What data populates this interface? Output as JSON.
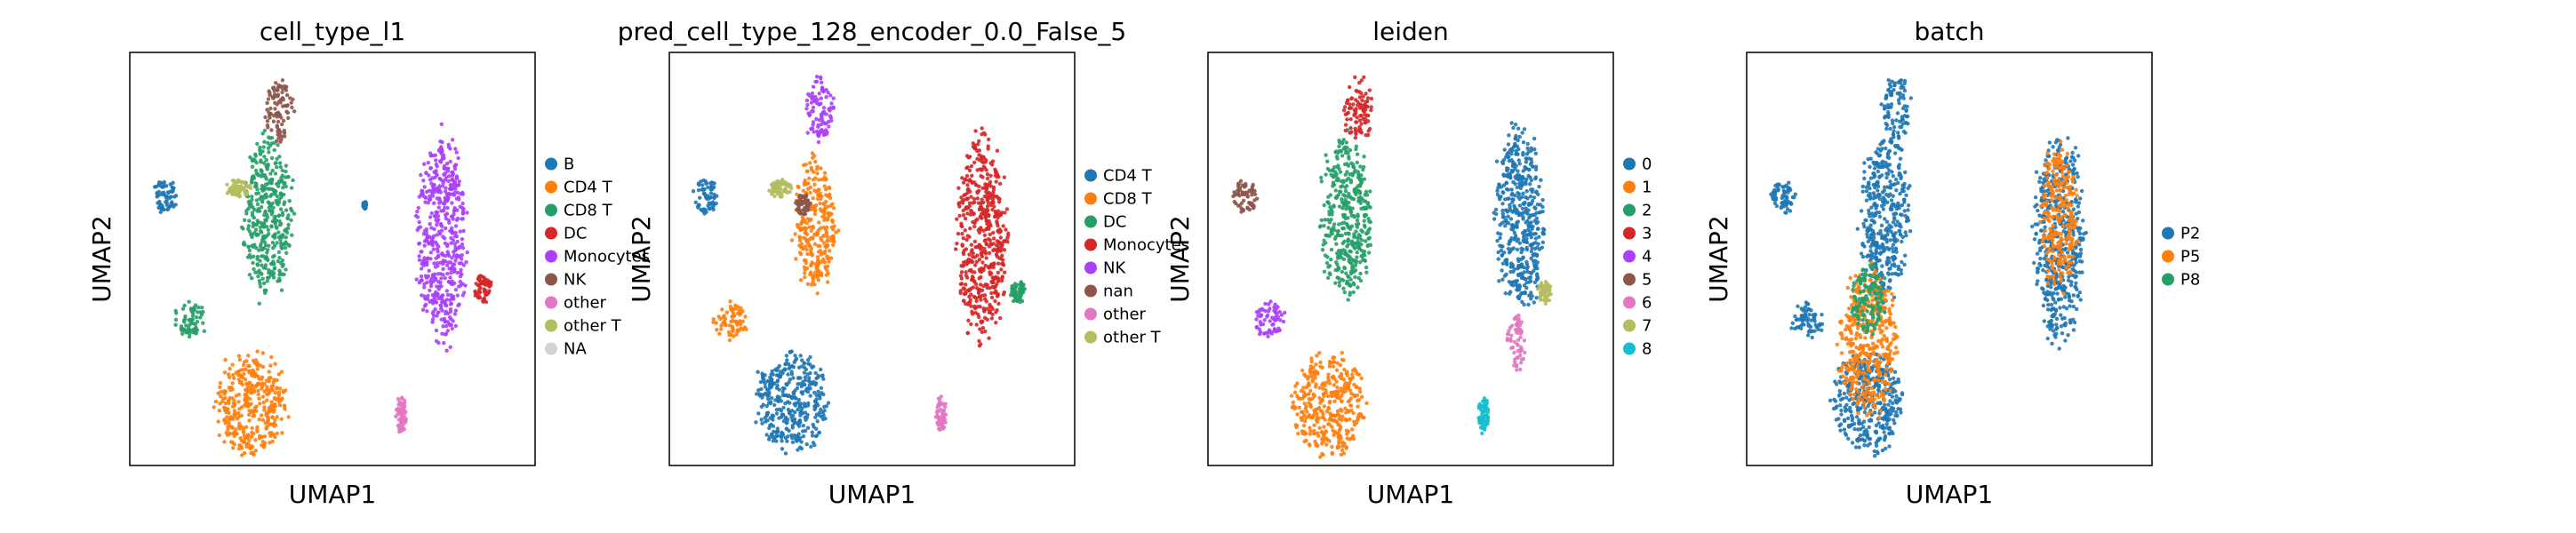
{
  "chart_data": [
    {
      "type": "scatter",
      "title": "cell_type_l1",
      "xlabel": "UMAP1",
      "ylabel": "UMAP2",
      "legend_position": "right",
      "legend": [
        {
          "label": "B",
          "color": "#1f77b4"
        },
        {
          "label": "CD4 T",
          "color": "#ff7f0e"
        },
        {
          "label": "CD8 T",
          "color": "#279e68"
        },
        {
          "label": "DC",
          "color": "#d62728"
        },
        {
          "label": "Monocytes",
          "color": "#aa40fc"
        },
        {
          "label": "NK",
          "color": "#8c564b"
        },
        {
          "label": "other",
          "color": "#e377c2"
        },
        {
          "label": "other T",
          "color": "#b5bd61"
        },
        {
          "label": "NA",
          "color": "#d3d3d3"
        }
      ],
      "clusters": [
        {
          "category": "B",
          "cx": 0.09,
          "cy": 0.65,
          "rx": 0.035,
          "ry": 0.045
        },
        {
          "category": "B",
          "cx": 0.58,
          "cy": 0.63,
          "rx": 0.005,
          "ry": 0.01
        },
        {
          "category": "CD4 T",
          "cx": 0.3,
          "cy": 0.15,
          "rx": 0.1,
          "ry": 0.14
        },
        {
          "category": "CD8 T",
          "cx": 0.34,
          "cy": 0.6,
          "rx": 0.07,
          "ry": 0.22
        },
        {
          "category": "CD8 T",
          "cx": 0.15,
          "cy": 0.35,
          "rx": 0.045,
          "ry": 0.05
        },
        {
          "category": "DC",
          "cx": 0.87,
          "cy": 0.43,
          "rx": 0.025,
          "ry": 0.04
        },
        {
          "category": "Monocytes",
          "cx": 0.77,
          "cy": 0.55,
          "rx": 0.07,
          "ry": 0.28
        },
        {
          "category": "NK",
          "cx": 0.37,
          "cy": 0.86,
          "rx": 0.04,
          "ry": 0.09
        },
        {
          "category": "other",
          "cx": 0.67,
          "cy": 0.12,
          "rx": 0.015,
          "ry": 0.05
        },
        {
          "category": "other T",
          "cx": 0.27,
          "cy": 0.67,
          "rx": 0.035,
          "ry": 0.025
        }
      ]
    },
    {
      "type": "scatter",
      "title": "pred_cell_type_128_encoder_0.0_False_5",
      "xlabel": "UMAP1",
      "ylabel": "UMAP2",
      "legend_position": "right",
      "legend": [
        {
          "label": "CD4 T",
          "color": "#1f77b4"
        },
        {
          "label": "CD8 T",
          "color": "#ff7f0e"
        },
        {
          "label": "DC",
          "color": "#279e68"
        },
        {
          "label": "Monocytes",
          "color": "#d62728"
        },
        {
          "label": "NK",
          "color": "#aa40fc"
        },
        {
          "label": "nan",
          "color": "#8c564b"
        },
        {
          "label": "other",
          "color": "#e377c2"
        },
        {
          "label": "other T",
          "color": "#b5bd61"
        }
      ],
      "clusters": [
        {
          "category": "CD4 T",
          "cx": 0.3,
          "cy": 0.15,
          "rx": 0.1,
          "ry": 0.14
        },
        {
          "category": "CD4 T",
          "cx": 0.09,
          "cy": 0.65,
          "rx": 0.035,
          "ry": 0.045
        },
        {
          "category": "CD8 T",
          "cx": 0.15,
          "cy": 0.35,
          "rx": 0.045,
          "ry": 0.05
        },
        {
          "category": "CD8 T",
          "cx": 0.36,
          "cy": 0.58,
          "rx": 0.06,
          "ry": 0.18
        },
        {
          "category": "DC",
          "cx": 0.86,
          "cy": 0.42,
          "rx": 0.02,
          "ry": 0.03
        },
        {
          "category": "Monocytes",
          "cx": 0.77,
          "cy": 0.55,
          "rx": 0.07,
          "ry": 0.28
        },
        {
          "category": "NK",
          "cx": 0.37,
          "cy": 0.86,
          "rx": 0.04,
          "ry": 0.09
        },
        {
          "category": "nan",
          "cx": 0.33,
          "cy": 0.63,
          "rx": 0.02,
          "ry": 0.03
        },
        {
          "category": "other",
          "cx": 0.67,
          "cy": 0.12,
          "rx": 0.015,
          "ry": 0.05
        },
        {
          "category": "other T",
          "cx": 0.27,
          "cy": 0.67,
          "rx": 0.035,
          "ry": 0.025
        }
      ]
    },
    {
      "type": "scatter",
      "title": "leiden",
      "xlabel": "UMAP1",
      "ylabel": "UMAP2",
      "legend_position": "right",
      "legend": [
        {
          "label": "0",
          "color": "#1f77b4"
        },
        {
          "label": "1",
          "color": "#ff7f0e"
        },
        {
          "label": "2",
          "color": "#279e68"
        },
        {
          "label": "3",
          "color": "#d62728"
        },
        {
          "label": "4",
          "color": "#aa40fc"
        },
        {
          "label": "5",
          "color": "#8c564b"
        },
        {
          "label": "6",
          "color": "#e377c2"
        },
        {
          "label": "7",
          "color": "#b5bd61"
        },
        {
          "label": "8",
          "color": "#17becf"
        }
      ],
      "clusters": [
        {
          "category": "0",
          "cx": 0.77,
          "cy": 0.6,
          "rx": 0.07,
          "ry": 0.25
        },
        {
          "category": "1",
          "cx": 0.3,
          "cy": 0.15,
          "rx": 0.1,
          "ry": 0.14
        },
        {
          "category": "2",
          "cx": 0.34,
          "cy": 0.6,
          "rx": 0.07,
          "ry": 0.22
        },
        {
          "category": "3",
          "cx": 0.37,
          "cy": 0.86,
          "rx": 0.04,
          "ry": 0.09
        },
        {
          "category": "4",
          "cx": 0.15,
          "cy": 0.35,
          "rx": 0.045,
          "ry": 0.05
        },
        {
          "category": "5",
          "cx": 0.09,
          "cy": 0.65,
          "rx": 0.035,
          "ry": 0.045
        },
        {
          "category": "6",
          "cx": 0.76,
          "cy": 0.3,
          "rx": 0.025,
          "ry": 0.08
        },
        {
          "category": "7",
          "cx": 0.83,
          "cy": 0.42,
          "rx": 0.02,
          "ry": 0.03
        },
        {
          "category": "8",
          "cx": 0.68,
          "cy": 0.12,
          "rx": 0.015,
          "ry": 0.05
        }
      ]
    },
    {
      "type": "scatter",
      "title": "batch",
      "xlabel": "UMAP1",
      "ylabel": "UMAP2",
      "legend_position": "right",
      "legend": [
        {
          "label": "P2",
          "color": "#1f77b4"
        },
        {
          "label": "P5",
          "color": "#ff7f0e"
        },
        {
          "label": "P8",
          "color": "#279e68"
        }
      ],
      "clusters": [
        {
          "category": "P2",
          "cx": 0.3,
          "cy": 0.15,
          "rx": 0.1,
          "ry": 0.14
        },
        {
          "category": "P2",
          "cx": 0.34,
          "cy": 0.6,
          "rx": 0.07,
          "ry": 0.22
        },
        {
          "category": "P2",
          "cx": 0.15,
          "cy": 0.35,
          "rx": 0.045,
          "ry": 0.05
        },
        {
          "category": "P2",
          "cx": 0.77,
          "cy": 0.55,
          "rx": 0.07,
          "ry": 0.28
        },
        {
          "category": "P5",
          "cx": 0.77,
          "cy": 0.6,
          "rx": 0.05,
          "ry": 0.2
        },
        {
          "category": "P2",
          "cx": 0.37,
          "cy": 0.86,
          "rx": 0.04,
          "ry": 0.09
        },
        {
          "category": "P2",
          "cx": 0.09,
          "cy": 0.65,
          "rx": 0.035,
          "ry": 0.045
        },
        {
          "category": "P5",
          "cx": 0.3,
          "cy": 0.3,
          "rx": 0.08,
          "ry": 0.2
        },
        {
          "category": "P8",
          "cx": 0.3,
          "cy": 0.4,
          "rx": 0.05,
          "ry": 0.1
        }
      ]
    }
  ]
}
